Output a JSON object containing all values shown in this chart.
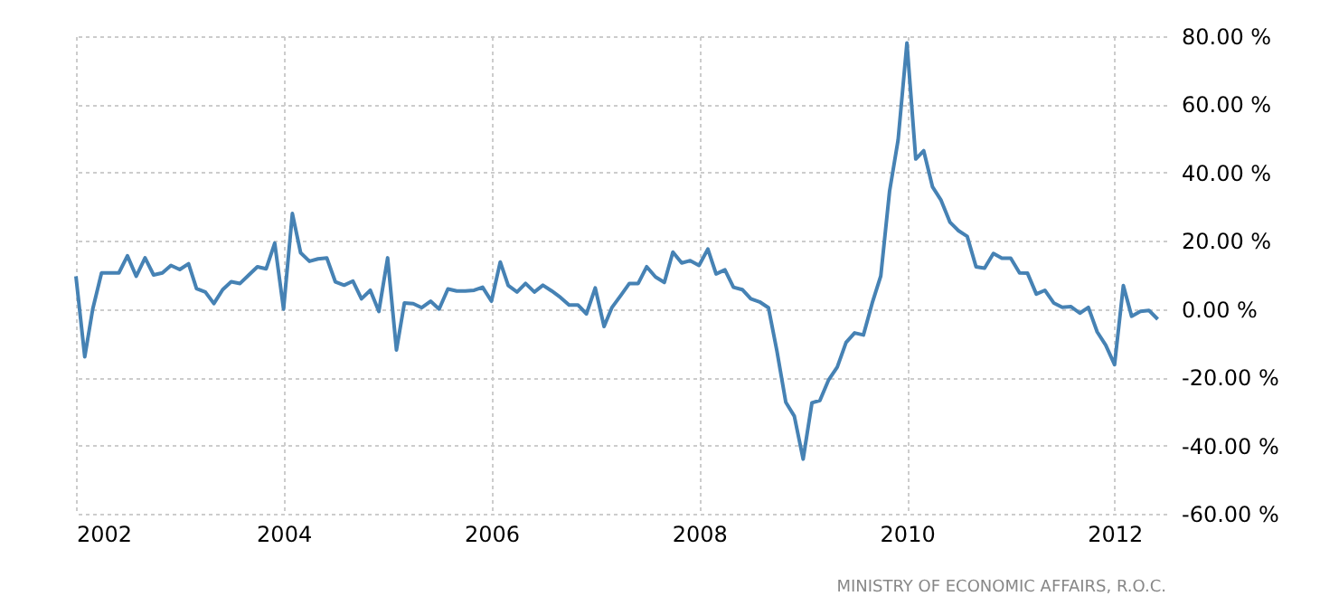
{
  "chart_data": {
    "type": "line",
    "x": [
      "2002-01",
      "2002-02",
      "2002-03",
      "2002-04",
      "2002-05",
      "2002-06",
      "2002-07",
      "2002-08",
      "2002-09",
      "2002-10",
      "2002-11",
      "2002-12",
      "2003-01",
      "2003-02",
      "2003-03",
      "2003-04",
      "2003-05",
      "2003-06",
      "2003-07",
      "2003-08",
      "2003-09",
      "2003-10",
      "2003-11",
      "2003-12",
      "2004-01",
      "2004-02",
      "2004-03",
      "2004-04",
      "2004-05",
      "2004-06",
      "2004-07",
      "2004-08",
      "2004-09",
      "2004-10",
      "2004-11",
      "2004-12",
      "2005-01",
      "2005-02",
      "2005-03",
      "2005-04",
      "2005-05",
      "2005-06",
      "2005-07",
      "2005-08",
      "2005-09",
      "2005-10",
      "2005-11",
      "2005-12",
      "2006-01",
      "2006-02",
      "2006-03",
      "2006-04",
      "2006-05",
      "2006-06",
      "2006-07",
      "2006-08",
      "2006-09",
      "2006-10",
      "2006-11",
      "2006-12",
      "2007-01",
      "2007-02",
      "2007-03",
      "2007-04",
      "2007-05",
      "2007-06",
      "2007-07",
      "2007-08",
      "2007-09",
      "2007-10",
      "2007-11",
      "2007-12",
      "2008-01",
      "2008-02",
      "2008-03",
      "2008-04",
      "2008-05",
      "2008-06",
      "2008-07",
      "2008-08",
      "2008-09",
      "2008-10",
      "2008-11",
      "2008-12",
      "2009-01",
      "2009-02",
      "2009-03",
      "2009-04",
      "2009-05",
      "2009-06",
      "2009-07",
      "2009-08",
      "2009-09",
      "2009-10",
      "2009-11",
      "2009-12",
      "2010-01",
      "2010-02",
      "2010-03",
      "2010-04",
      "2010-05",
      "2010-06",
      "2010-07",
      "2010-08",
      "2010-09",
      "2010-10",
      "2010-11",
      "2010-12",
      "2011-01",
      "2011-02",
      "2011-03",
      "2011-04",
      "2011-05",
      "2011-06",
      "2011-07",
      "2011-08",
      "2011-09",
      "2011-10",
      "2011-11",
      "2011-12",
      "2012-01",
      "2012-02",
      "2012-03",
      "2012-04",
      "2012-05",
      "2012-06"
    ],
    "series": [
      {
        "color": "#4682b4",
        "values": [
          9.6,
          -14,
          0,
          10.6,
          10.6,
          10.6,
          15.6,
          9.6,
          15,
          10,
          10.6,
          12.8,
          11.6,
          13.3,
          6,
          5,
          1.6,
          5.7,
          8,
          7.5,
          10,
          12.4,
          11.8,
          19.3,
          0,
          28,
          16.5,
          14,
          14.7,
          15,
          8,
          7,
          8.2,
          3,
          5.5,
          -0.7,
          15,
          -12,
          1.8,
          1.6,
          0.4,
          2.3,
          0,
          5.9,
          5.3,
          5.3,
          5.5,
          6.4,
          2.3,
          13.8,
          6.9,
          5,
          7.5,
          5,
          7,
          5.3,
          3.4,
          1.2,
          1.2,
          -1.4,
          6.2,
          -5.1,
          0.5,
          4,
          7.5,
          7.5,
          12.4,
          9.4,
          7.8,
          16.7,
          13.5,
          14.2,
          12.8,
          17.6,
          10.3,
          11.5,
          6.4,
          5.7,
          3,
          2.1,
          0.4,
          -12.4,
          -27.3,
          -31.4,
          -44,
          -27.5,
          -26.8,
          -20.7,
          -17,
          -9.8,
          -7,
          -7.6,
          1.8,
          9.7,
          34.6,
          49.6,
          78,
          44,
          46.4,
          35.8,
          31.9,
          25.5,
          23,
          21.3,
          12.4,
          12,
          16.3,
          14.9,
          14.9,
          10.6,
          10.5,
          4.4,
          5.5,
          1.8,
          0.5,
          0.7,
          -1.2,
          0.5,
          -6.7,
          -10.6,
          -16.3,
          6.9,
          -2.1,
          -0.7,
          -0.4,
          -3
        ]
      }
    ],
    "xlim": [
      "2002-01-01",
      "2012-07-01"
    ],
    "xticks": [
      "2002",
      "2004",
      "2006",
      "2008",
      "2010",
      "2012"
    ],
    "ylim": [
      -60,
      80
    ],
    "yticks": [
      {
        "value": -60,
        "label": "-60.00 %"
      },
      {
        "value": -40,
        "label": "-40.00 %"
      },
      {
        "value": -20,
        "label": "-20.00 %"
      },
      {
        "value": 0,
        "label": "0.00 %"
      },
      {
        "value": 20,
        "label": "20.00 %"
      },
      {
        "value": 40,
        "label": "40.00 %"
      },
      {
        "value": 60,
        "label": "60.00 %"
      },
      {
        "value": 80,
        "label": "80.00 %"
      }
    ],
    "grid": true,
    "line_style": "solid",
    "marker": "none",
    "annotations": [
      "MINISTRY OF ECONOMIC AFFAIRS, R.O.C."
    ]
  }
}
